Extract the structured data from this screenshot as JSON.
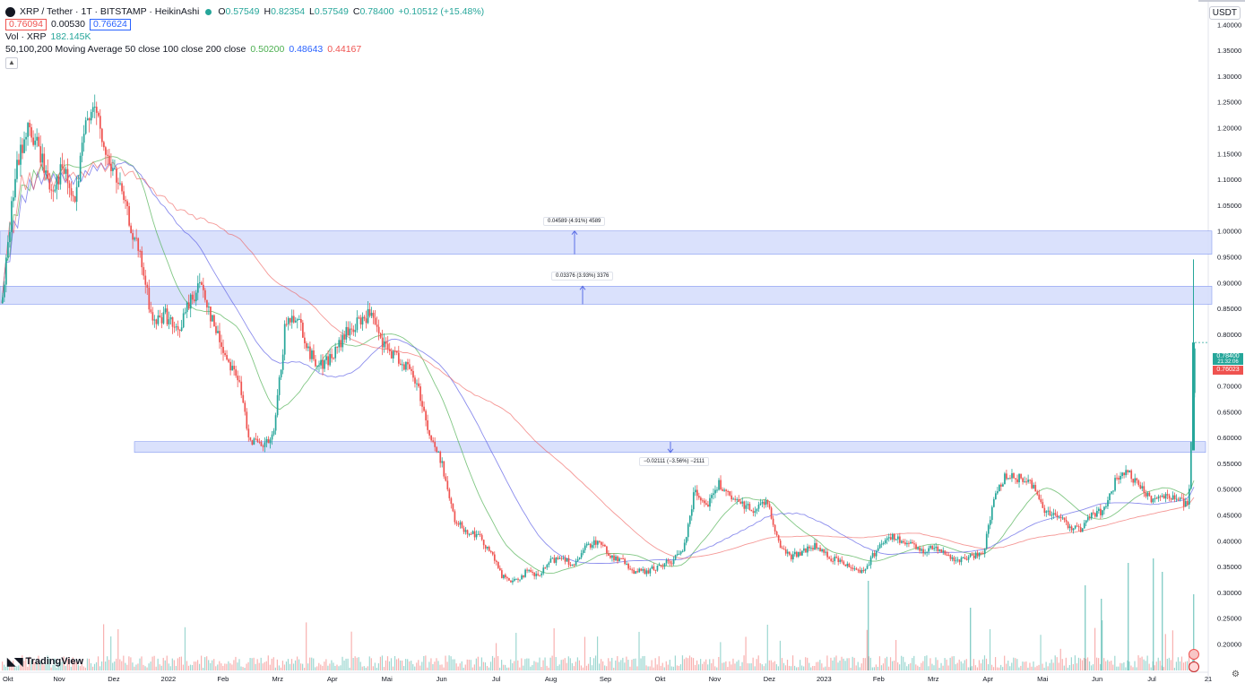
{
  "header": {
    "symbol": "XRP / Tether · 1T · BITSTAMP · HeikinAshi",
    "o_label": "O",
    "o": "0.57549",
    "h_label": "H",
    "h": "0.82354",
    "l_label": "L",
    "l": "0.57549",
    "c_label": "C",
    "c": "0.78400",
    "change": "+0.10512 (+15.48%)",
    "bid": "0.76094",
    "spread": "0.00530",
    "ask": "0.76624",
    "vol_label": "Vol · XRP",
    "vol_value": "182.145K",
    "ma_label": "50,100,200 Moving Average 50 close 100 close 200 close",
    "ma50": "0.50200",
    "ma100": "0.48643",
    "ma200": "0.44167",
    "collapse_icon": "chevron-up-icon"
  },
  "currency": "USDT",
  "brand": "TradingView",
  "price_labels": {
    "current": "0.78400",
    "countdown": "21:32:06",
    "bid": "0.76023"
  },
  "colors": {
    "up": "#26a69a",
    "down": "#ef5350",
    "ma50": "#4caf50",
    "ma100": "#5b5ee6",
    "ma200": "#ef5350",
    "zone": "#d6defc",
    "zone_border": "#7a90f0"
  },
  "zones": [
    {
      "y_top": 1.0,
      "y_bottom": 0.955,
      "label": "0.04589 (4.91%) 4589"
    },
    {
      "y_top": 0.893,
      "y_bottom": 0.858,
      "label": "0.03376 (3.93%) 3376"
    },
    {
      "y_top": 0.592,
      "y_bottom": 0.571,
      "label": "−0.02111 (−3.56%) −2111"
    }
  ],
  "chart_data": {
    "type": "candlestick",
    "title": "XRP / Tether · 1T · BITSTAMP · HeikinAshi",
    "ylim": [
      0.18,
      1.43
    ],
    "y_ticks": [
      "1.40000",
      "1.35000",
      "1.30000",
      "1.25000",
      "1.20000",
      "1.15000",
      "1.10000",
      "1.05000",
      "1.00000",
      "0.95000",
      "0.90000",
      "0.85000",
      "0.80000",
      "0.75000",
      "0.70000",
      "0.65000",
      "0.60000",
      "0.55000",
      "0.50000",
      "0.45000",
      "0.40000",
      "0.35000",
      "0.30000",
      "0.25000",
      "0.20000"
    ],
    "x_ticks": [
      "Okt",
      "Nov",
      "Dez",
      "2022",
      "Feb",
      "Mrz",
      "Apr",
      "Mai",
      "Jun",
      "Jul",
      "Aug",
      "Sep",
      "Okt",
      "Nov",
      "Dez",
      "2023",
      "Feb",
      "Mrz",
      "Apr",
      "Mai",
      "Jun",
      "Jul",
      "21"
    ],
    "series_close_points": [
      [
        0,
        0.86
      ],
      [
        2,
        1.1
      ],
      [
        4,
        1.2
      ],
      [
        6,
        1.16
      ],
      [
        8,
        1.08
      ],
      [
        10,
        1.12
      ],
      [
        12,
        1.05
      ],
      [
        14,
        1.22
      ],
      [
        15,
        1.25
      ],
      [
        17,
        1.15
      ],
      [
        19,
        1.1
      ],
      [
        21,
        1.02
      ],
      [
        23,
        0.94
      ],
      [
        25,
        0.82
      ],
      [
        27,
        0.84
      ],
      [
        29,
        0.8
      ],
      [
        31,
        0.86
      ],
      [
        33,
        0.9
      ],
      [
        35,
        0.82
      ],
      [
        37,
        0.76
      ],
      [
        39,
        0.72
      ],
      [
        41,
        0.6
      ],
      [
        43,
        0.58
      ],
      [
        45,
        0.6
      ],
      [
        47,
        0.82
      ],
      [
        49,
        0.84
      ],
      [
        51,
        0.76
      ],
      [
        53,
        0.74
      ],
      [
        55,
        0.76
      ],
      [
        57,
        0.8
      ],
      [
        59,
        0.82
      ],
      [
        61,
        0.84
      ],
      [
        63,
        0.78
      ],
      [
        65,
        0.76
      ],
      [
        67,
        0.74
      ],
      [
        69,
        0.7
      ],
      [
        71,
        0.6
      ],
      [
        73,
        0.55
      ],
      [
        75,
        0.44
      ],
      [
        77,
        0.42
      ],
      [
        79,
        0.41
      ],
      [
        81,
        0.38
      ],
      [
        83,
        0.33
      ],
      [
        85,
        0.32
      ],
      [
        87,
        0.34
      ],
      [
        89,
        0.33
      ],
      [
        91,
        0.36
      ],
      [
        93,
        0.37
      ],
      [
        95,
        0.35
      ],
      [
        97,
        0.39
      ],
      [
        99,
        0.4
      ],
      [
        101,
        0.37
      ],
      [
        103,
        0.36
      ],
      [
        105,
        0.34
      ],
      [
        107,
        0.34
      ],
      [
        109,
        0.35
      ],
      [
        111,
        0.36
      ],
      [
        113,
        0.38
      ],
      [
        115,
        0.5
      ],
      [
        117,
        0.47
      ],
      [
        119,
        0.51
      ],
      [
        121,
        0.48
      ],
      [
        123,
        0.47
      ],
      [
        125,
        0.46
      ],
      [
        127,
        0.48
      ],
      [
        129,
        0.39
      ],
      [
        131,
        0.37
      ],
      [
        133,
        0.38
      ],
      [
        135,
        0.39
      ],
      [
        137,
        0.37
      ],
      [
        139,
        0.36
      ],
      [
        141,
        0.35
      ],
      [
        143,
        0.34
      ],
      [
        145,
        0.38
      ],
      [
        147,
        0.41
      ],
      [
        149,
        0.4
      ],
      [
        151,
        0.39
      ],
      [
        153,
        0.38
      ],
      [
        155,
        0.39
      ],
      [
        157,
        0.37
      ],
      [
        159,
        0.36
      ],
      [
        161,
        0.37
      ],
      [
        163,
        0.38
      ],
      [
        165,
        0.5
      ],
      [
        167,
        0.53
      ],
      [
        169,
        0.52
      ],
      [
        171,
        0.51
      ],
      [
        173,
        0.46
      ],
      [
        175,
        0.45
      ],
      [
        177,
        0.43
      ],
      [
        179,
        0.42
      ],
      [
        181,
        0.45
      ],
      [
        183,
        0.46
      ],
      [
        185,
        0.52
      ],
      [
        187,
        0.53
      ],
      [
        189,
        0.5
      ],
      [
        191,
        0.48
      ],
      [
        193,
        0.49
      ],
      [
        195,
        0.48
      ],
      [
        197,
        0.47
      ],
      [
        198,
        0.78
      ]
    ],
    "volume_spikes": [
      0.15,
      0.9,
      0.96,
      0.98
    ],
    "moving_averages": [
      "MA 50",
      "MA 100",
      "MA 200"
    ]
  }
}
